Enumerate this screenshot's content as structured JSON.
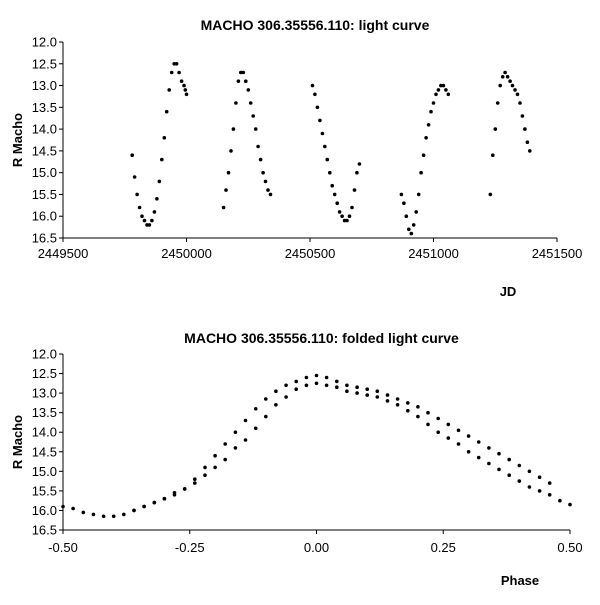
{
  "chart_data": [
    {
      "type": "scatter",
      "title": "MACHO 306.35556.110: light curve",
      "xlabel": "JD",
      "ylabel": "R Macho",
      "xlim": [
        2449500,
        2451500
      ],
      "ylim": [
        12.0,
        16.5
      ],
      "y_inverted": true,
      "grid": false,
      "legend": "none",
      "x_ticks": [
        "2449500",
        "2450000",
        "2450500",
        "2451000",
        "2451500"
      ],
      "y_ticks": [
        "12.0",
        "12.5",
        "13.0",
        "13.5",
        "14.0",
        "14.5",
        "15.0",
        "15.5",
        "16.0",
        "16.5"
      ],
      "marker_color": "#000000",
      "series": [
        {
          "x": [
            2449780,
            2449790,
            2449800,
            2449810,
            2449820,
            2449830,
            2449840,
            2449850,
            2449860,
            2449870,
            2449880,
            2449890,
            2449900,
            2449910,
            2449920,
            2449930,
            2449940,
            2449950,
            2449960,
            2449970,
            2449980,
            2449990,
            2449995,
            2450000,
            2450150,
            2450160,
            2450170,
            2450180,
            2450190,
            2450200,
            2450210,
            2450220,
            2450230,
            2450240,
            2450250,
            2450260,
            2450270,
            2450280,
            2450290,
            2450300,
            2450310,
            2450320,
            2450330,
            2450340,
            2450510,
            2450520,
            2450530,
            2450540,
            2450550,
            2450560,
            2450570,
            2450580,
            2450590,
            2450600,
            2450610,
            2450620,
            2450630,
            2450640,
            2450650,
            2450660,
            2450670,
            2450680,
            2450690,
            2450700,
            2450870,
            2450880,
            2450890,
            2450900,
            2450910,
            2450920,
            2450930,
            2450940,
            2450950,
            2450960,
            2450970,
            2450980,
            2450990,
            2451000,
            2451010,
            2451020,
            2451030,
            2451040,
            2451050,
            2451060,
            2451230,
            2451240,
            2451250,
            2451260,
            2451270,
            2451280,
            2451290,
            2451300,
            2451310,
            2451320,
            2451330,
            2451340,
            2451350,
            2451360,
            2451370,
            2451380,
            2451390
          ],
          "y": [
            14.6,
            15.1,
            15.5,
            15.8,
            16.0,
            16.1,
            16.2,
            16.2,
            16.1,
            15.9,
            15.6,
            15.2,
            14.7,
            14.2,
            13.6,
            13.1,
            12.7,
            12.5,
            12.5,
            12.7,
            12.9,
            13.0,
            13.1,
            13.2,
            15.8,
            15.4,
            15.0,
            14.5,
            14.0,
            13.4,
            12.9,
            12.7,
            12.7,
            12.9,
            13.1,
            13.4,
            13.7,
            14.0,
            14.4,
            14.7,
            15.0,
            15.2,
            15.4,
            15.5,
            13.0,
            13.2,
            13.5,
            13.8,
            14.1,
            14.4,
            14.7,
            15.0,
            15.3,
            15.5,
            15.7,
            15.9,
            16.0,
            16.1,
            16.1,
            16.0,
            15.8,
            15.4,
            15.0,
            14.8,
            15.5,
            15.7,
            16.0,
            16.3,
            16.4,
            16.2,
            15.9,
            15.5,
            15.0,
            14.6,
            14.2,
            13.9,
            13.6,
            13.4,
            13.2,
            13.1,
            13.0,
            13.0,
            13.1,
            13.2,
            15.5,
            14.6,
            14.0,
            13.4,
            13.0,
            12.8,
            12.7,
            12.8,
            12.9,
            13.0,
            13.1,
            13.2,
            13.4,
            13.7,
            14.0,
            14.3,
            14.5
          ]
        }
      ]
    },
    {
      "type": "scatter",
      "title": "MACHO 306.35556.110: folded light curve",
      "xlabel": "Phase",
      "ylabel": "R Macho",
      "xlim": [
        -0.5,
        0.5
      ],
      "ylim": [
        12.0,
        16.5
      ],
      "y_inverted": true,
      "grid": false,
      "legend": "none",
      "x_ticks": [
        "-0.50",
        "-0.25",
        "0.00",
        "0.25",
        "0.50"
      ],
      "y_ticks": [
        "12.0",
        "12.5",
        "13.0",
        "13.5",
        "14.0",
        "14.5",
        "15.0",
        "15.5",
        "16.0",
        "16.5"
      ],
      "marker_color": "#000000",
      "series": [
        {
          "x": [
            -0.5,
            -0.48,
            -0.46,
            -0.44,
            -0.42,
            -0.4,
            -0.38,
            -0.36,
            -0.34,
            -0.32,
            -0.3,
            -0.28,
            -0.26,
            -0.24,
            -0.22,
            -0.2,
            -0.18,
            -0.16,
            -0.14,
            -0.12,
            -0.1,
            -0.08,
            -0.06,
            -0.04,
            -0.02,
            0.0,
            0.02,
            0.04,
            0.06,
            0.08,
            0.1,
            0.12,
            0.14,
            0.16,
            0.18,
            0.2,
            0.22,
            0.24,
            0.26,
            0.28,
            0.3,
            0.32,
            0.34,
            0.36,
            0.38,
            0.4,
            0.42,
            0.44,
            0.46,
            0.48,
            0.5,
            -0.36,
            -0.34,
            -0.32,
            -0.3,
            -0.28,
            -0.26,
            -0.24,
            -0.22,
            -0.2,
            -0.18,
            -0.16,
            -0.14,
            -0.12,
            -0.1,
            -0.08,
            -0.06,
            -0.04,
            -0.02,
            0.0,
            0.02,
            0.04,
            0.06,
            0.08,
            0.1,
            0.12,
            0.14,
            0.16,
            0.18,
            0.2,
            0.22,
            0.24,
            0.26,
            0.28,
            0.3,
            0.32,
            0.34,
            0.36,
            0.38,
            0.4,
            0.42,
            0.44,
            0.46
          ],
          "y": [
            15.9,
            15.95,
            16.05,
            16.1,
            16.15,
            16.15,
            16.1,
            16.0,
            15.9,
            15.8,
            15.7,
            15.55,
            15.45,
            15.3,
            15.1,
            14.9,
            14.7,
            14.4,
            14.2,
            13.9,
            13.6,
            13.3,
            13.1,
            12.9,
            12.8,
            12.75,
            12.8,
            12.85,
            12.95,
            13.0,
            13.05,
            13.1,
            13.2,
            13.3,
            13.45,
            13.6,
            13.8,
            14.0,
            14.15,
            14.3,
            14.5,
            14.65,
            14.8,
            14.95,
            15.1,
            15.25,
            15.4,
            15.5,
            15.6,
            15.75,
            15.85,
            16.0,
            15.9,
            15.8,
            15.7,
            15.6,
            15.45,
            15.2,
            14.9,
            14.6,
            14.3,
            14.0,
            13.7,
            13.4,
            13.15,
            12.95,
            12.8,
            12.7,
            12.6,
            12.55,
            12.6,
            12.7,
            12.8,
            12.85,
            12.9,
            12.95,
            13.05,
            13.15,
            13.25,
            13.35,
            13.5,
            13.65,
            13.8,
            13.95,
            14.1,
            14.25,
            14.4,
            14.55,
            14.7,
            14.85,
            15.0,
            15.15,
            15.3
          ]
        }
      ]
    }
  ]
}
